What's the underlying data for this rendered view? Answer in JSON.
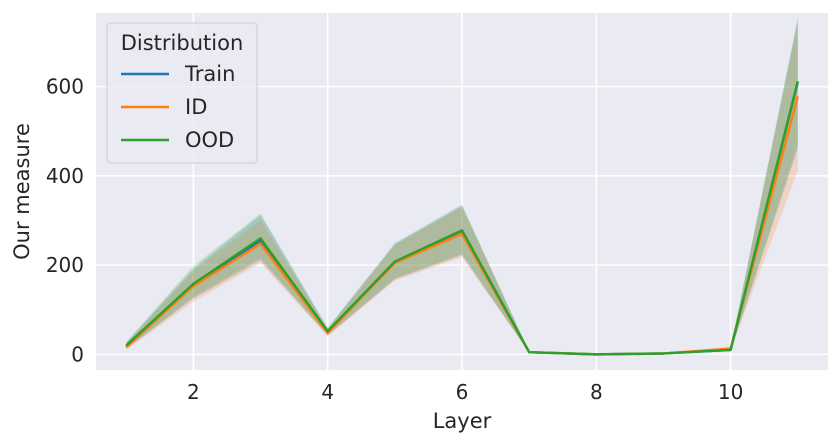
{
  "chart_data": {
    "type": "line",
    "xlabel": "Layer",
    "ylabel": "Our measure",
    "xlim": [
      0.55,
      11.45
    ],
    "ylim": [
      -35,
      765
    ],
    "xticks": [
      2,
      4,
      6,
      8,
      10
    ],
    "yticks": [
      0,
      200,
      400,
      600
    ],
    "grid": true,
    "legend": {
      "title": "Distribution",
      "placement": "top-left"
    },
    "x": [
      1,
      2,
      3,
      4,
      5,
      6,
      7,
      8,
      9,
      10,
      11
    ],
    "series": [
      {
        "name": "Train",
        "color": "#1f77b4",
        "values": [
          18,
          158,
          255,
          50,
          207,
          277,
          5,
          0,
          2,
          10,
          610
        ],
        "lower": [
          12,
          125,
          210,
          42,
          168,
          222,
          4,
          0,
          1,
          7,
          460
        ],
        "upper": [
          26,
          192,
          312,
          58,
          247,
          333,
          6,
          0,
          3,
          13,
          750
        ]
      },
      {
        "name": "ID",
        "color": "#ff7f0e",
        "values": [
          16,
          153,
          248,
          48,
          205,
          270,
          5,
          0,
          2,
          13,
          578
        ],
        "lower": [
          10,
          118,
          205,
          40,
          165,
          218,
          4,
          0,
          1,
          9,
          412
        ],
        "upper": [
          24,
          188,
          300,
          57,
          245,
          330,
          6,
          0,
          3,
          17,
          740
        ]
      },
      {
        "name": "OOD",
        "color": "#2ca02c",
        "values": [
          20,
          158,
          260,
          52,
          208,
          278,
          5,
          0,
          2,
          10,
          612
        ],
        "lower": [
          13,
          128,
          215,
          44,
          170,
          225,
          4,
          0,
          1,
          7,
          470
        ],
        "upper": [
          28,
          198,
          316,
          60,
          250,
          336,
          6,
          0,
          3,
          14,
          755
        ]
      }
    ]
  }
}
